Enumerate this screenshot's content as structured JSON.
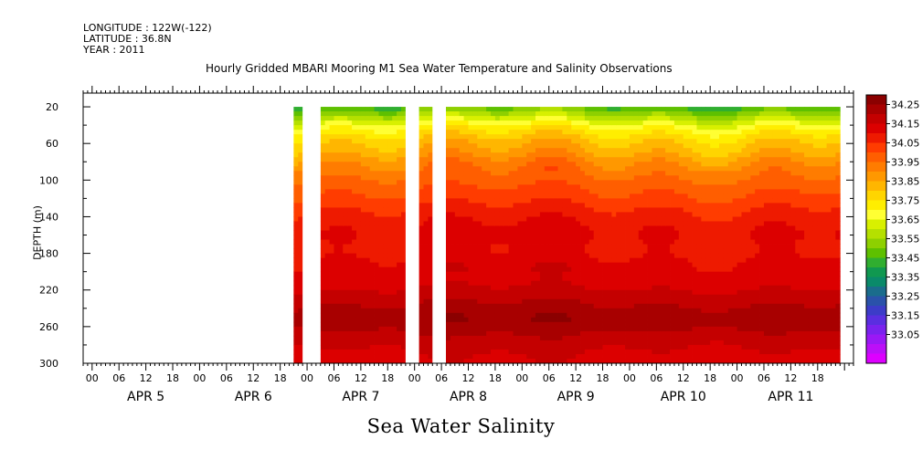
{
  "header": {
    "longitude": "LONGITUDE : 122W(-122)",
    "latitude": "LATITUDE : 36.8N",
    "year": "YEAR : 2011"
  },
  "chart_data": {
    "type": "heatmap",
    "title": "Hourly Gridded MBARI Mooring M1 Sea Water Temperature and Salinity Observations",
    "ylabel": "DEPTH (m)",
    "xlabel": "Sea Water Salinity",
    "y_ticks": [
      20,
      60,
      100,
      140,
      180,
      220,
      260,
      300
    ],
    "ylim": [
      300,
      5
    ],
    "x_hour_ticks": [
      "00",
      "06",
      "12",
      "18",
      "00",
      "06",
      "12",
      "18",
      "00",
      "06",
      "12",
      "18",
      "00",
      "06",
      "12",
      "18",
      "00",
      "06",
      "12",
      "18",
      "00",
      "06",
      "12",
      "18",
      "00",
      "06",
      "12",
      "18"
    ],
    "x_day_labels": [
      "APR  5",
      "APR  6",
      "APR  7",
      "APR  8",
      "APR  9",
      "APR 10",
      "APR 11"
    ],
    "x_range_hours": [
      -2,
      170
    ],
    "data_depth_range": [
      20,
      300
    ],
    "data_segments_hours": [
      [
        45,
        47
      ],
      [
        51,
        167
      ]
    ],
    "gaps_hours": [
      [
        47,
        51
      ],
      [
        70,
        73
      ],
      [
        76,
        79
      ]
    ],
    "depth_levels": [
      20,
      30,
      40,
      50,
      60,
      70,
      80,
      90,
      100,
      110,
      120,
      130,
      140,
      150,
      160,
      170,
      180,
      190,
      200,
      210,
      220,
      230,
      240,
      250,
      260,
      270,
      280,
      290,
      300
    ],
    "salinity_profile": [
      33.55,
      33.65,
      33.75,
      33.82,
      33.87,
      33.9,
      33.95,
      33.98,
      34.0,
      34.03,
      34.05,
      34.08,
      34.1,
      34.12,
      34.13,
      34.12,
      34.12,
      34.14,
      34.15,
      34.15,
      34.17,
      34.2,
      34.22,
      34.25,
      34.23,
      34.2,
      34.18,
      34.16,
      34.15
    ],
    "colorbar": {
      "levels": [
        "34.25",
        "34.15",
        "34.05",
        "33.95",
        "33.85",
        "33.75",
        "33.65",
        "33.55",
        "33.45",
        "33.35",
        "33.25",
        "33.15",
        "33.05"
      ],
      "colors": [
        "#8b0000",
        "#a80000",
        "#c40000",
        "#dc0000",
        "#ee1a00",
        "#ff3c00",
        "#ff5e00",
        "#ff7c00",
        "#ff9800",
        "#ffb600",
        "#ffd500",
        "#ffee00",
        "#ffff33",
        "#d8f000",
        "#b5e000",
        "#8ed000",
        "#5ec000",
        "#30ae30",
        "#109850",
        "#0a8a6a",
        "#1a6c8c",
        "#2a52aa",
        "#3c3cc8",
        "#5a2ee0",
        "#7a22ee",
        "#9a18f5",
        "#bb0ff8",
        "#dd00ff"
      ]
    }
  }
}
